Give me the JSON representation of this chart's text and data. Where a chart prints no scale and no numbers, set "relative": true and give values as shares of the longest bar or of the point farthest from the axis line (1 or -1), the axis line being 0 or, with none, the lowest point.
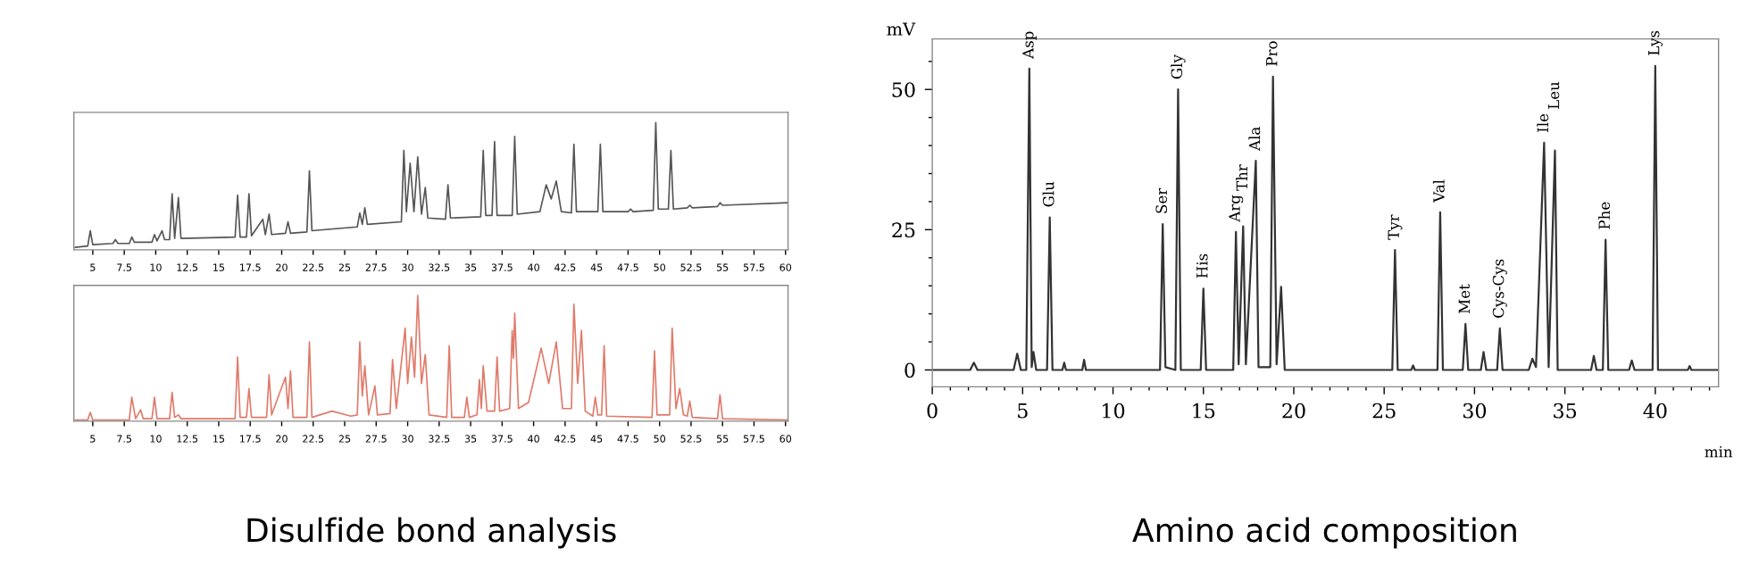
{
  "chart_data": [
    {
      "type": "line",
      "relative": true,
      "title": "Disulfide bond analysis",
      "xlim": [
        3.5,
        60.2
      ],
      "xticks": [
        5,
        7.5,
        10,
        12.5,
        15,
        17.5,
        20,
        22.5,
        25,
        27.5,
        30,
        32.5,
        35,
        37.5,
        40,
        42.5,
        45,
        47.5,
        50,
        52.5,
        55,
        57.5,
        60
      ],
      "tick_labels": "x",
      "series": [
        {
          "color": "#555555",
          "x": [
            3.6,
            4.6,
            4.8,
            5.0,
            6.6,
            6.8,
            7.0,
            7.9,
            8.1,
            8.3,
            9.7,
            9.9,
            10.1,
            10.5,
            10.7,
            11.1,
            11.3,
            11.5,
            11.8,
            12.0,
            16.3,
            16.5,
            16.7,
            17.2,
            17.4,
            17.6,
            18.5,
            18.7,
            19.0,
            19.2,
            20.3,
            20.5,
            20.7,
            22.0,
            22.2,
            22.4,
            26.0,
            26.2,
            26.4,
            26.6,
            26.8,
            29.5,
            29.7,
            29.9,
            30.2,
            30.5,
            30.8,
            31.1,
            31.4,
            31.6,
            33.0,
            33.2,
            33.4,
            35.8,
            36.0,
            36.2,
            36.7,
            36.9,
            37.1,
            38.3,
            38.5,
            38.7,
            40.5,
            41.0,
            41.4,
            41.8,
            42.2,
            43.0,
            43.2,
            43.4,
            45.1,
            45.3,
            45.5,
            47.5,
            47.7,
            47.9,
            49.5,
            49.7,
            49.9,
            50.7,
            50.9,
            51.1,
            52.2,
            52.4,
            52.6,
            54.6,
            54.8,
            55.0,
            60.2
          ],
          "values": [
            0.02,
            0.03,
            0.15,
            0.04,
            0.05,
            0.08,
            0.05,
            0.05,
            0.1,
            0.06,
            0.06,
            0.12,
            0.07,
            0.15,
            0.08,
            0.08,
            0.44,
            0.09,
            0.41,
            0.09,
            0.1,
            0.43,
            0.1,
            0.1,
            0.44,
            0.11,
            0.24,
            0.12,
            0.28,
            0.12,
            0.13,
            0.22,
            0.13,
            0.14,
            0.62,
            0.15,
            0.18,
            0.29,
            0.2,
            0.33,
            0.2,
            0.22,
            0.78,
            0.3,
            0.68,
            0.3,
            0.73,
            0.28,
            0.49,
            0.25,
            0.24,
            0.51,
            0.25,
            0.26,
            0.78,
            0.27,
            0.27,
            0.85,
            0.27,
            0.27,
            0.89,
            0.28,
            0.3,
            0.51,
            0.4,
            0.54,
            0.3,
            0.29,
            0.83,
            0.3,
            0.3,
            0.83,
            0.3,
            0.3,
            0.32,
            0.3,
            0.31,
            1.0,
            0.32,
            0.32,
            0.78,
            0.32,
            0.33,
            0.35,
            0.33,
            0.34,
            0.37,
            0.35,
            0.37
          ]
        }
      ]
    },
    {
      "type": "line",
      "relative": true,
      "xlim": [
        3.5,
        60.2
      ],
      "xticks": [
        5,
        7.5,
        10,
        12.5,
        15,
        17.5,
        20,
        22.5,
        25,
        27.5,
        30,
        32.5,
        35,
        37.5,
        40,
        42.5,
        45,
        47.5,
        50,
        52.5,
        55,
        57.5,
        60
      ],
      "tick_labels": "x",
      "series": [
        {
          "color": "#e07a6a",
          "x": [
            3.6,
            4.6,
            4.8,
            5.0,
            7.9,
            8.1,
            8.4,
            8.8,
            9.0,
            9.7,
            9.9,
            10.1,
            11.1,
            11.3,
            11.5,
            11.8,
            12.0,
            16.3,
            16.5,
            16.7,
            17.2,
            17.4,
            17.6,
            18.8,
            19.0,
            19.2,
            20.3,
            20.5,
            20.7,
            20.9,
            22.0,
            22.2,
            22.4,
            24,
            25.5,
            26.0,
            26.2,
            26.4,
            26.6,
            26.9,
            27.4,
            27.6,
            28.6,
            28.8,
            29.1,
            29.8,
            30.0,
            30.3,
            30.55,
            30.8,
            31.1,
            31.4,
            31.7,
            33.1,
            33.3,
            33.5,
            34.5,
            34.7,
            34.9,
            35.5,
            35.7,
            35.85,
            36.0,
            36.3,
            36.9,
            37.1,
            37.3,
            38.1,
            38.3,
            38.4,
            38.5,
            38.8,
            39.6,
            40.6,
            41.2,
            41.8,
            42.3,
            43.0,
            43.2,
            43.5,
            43.8,
            44.1,
            44.7,
            44.9,
            45.1,
            45.4,
            45.6,
            45.8,
            49.4,
            49.6,
            49.8,
            50.8,
            51.0,
            51.3,
            51.6,
            51.9,
            52.2,
            52.4,
            52.6,
            54.6,
            54.8,
            55.0,
            60.2
          ],
          "values": [
            0.01,
            0.01,
            0.07,
            0.01,
            0.01,
            0.19,
            0.02,
            0.09,
            0.02,
            0.02,
            0.19,
            0.02,
            0.02,
            0.23,
            0.03,
            0.05,
            0.02,
            0.02,
            0.51,
            0.03,
            0.03,
            0.26,
            0.03,
            0.03,
            0.37,
            0.05,
            0.35,
            0.1,
            0.4,
            0.03,
            0.03,
            0.63,
            0.03,
            0.08,
            0.04,
            0.05,
            0.63,
            0.2,
            0.44,
            0.05,
            0.28,
            0.05,
            0.06,
            0.49,
            0.1,
            0.74,
            0.3,
            0.67,
            0.35,
            1.0,
            0.3,
            0.53,
            0.05,
            0.03,
            0.6,
            0.03,
            0.03,
            0.19,
            0.03,
            0.05,
            0.33,
            0.1,
            0.44,
            0.08,
            0.08,
            0.51,
            0.08,
            0.1,
            0.72,
            0.5,
            0.86,
            0.1,
            0.15,
            0.58,
            0.3,
            0.63,
            0.1,
            0.1,
            0.93,
            0.3,
            0.72,
            0.08,
            0.04,
            0.19,
            0.05,
            0.05,
            0.6,
            0.04,
            0.03,
            0.56,
            0.05,
            0.05,
            0.74,
            0.1,
            0.26,
            0.05,
            0.04,
            0.16,
            0.03,
            0.02,
            0.21,
            0.02,
            0.01
          ]
        }
      ]
    },
    {
      "type": "line",
      "title": "Amino acid composition",
      "xlabel": "min",
      "ylabel": "mV",
      "xlim": [
        0,
        43.5
      ],
      "xticks": [
        0,
        5,
        10,
        15,
        20,
        25,
        30,
        35,
        40
      ],
      "ylim": [
        -3,
        59
      ],
      "yticks": [
        0,
        25,
        50
      ],
      "series": [
        {
          "color": "#333333",
          "x": [
            0,
            2.1,
            2.3,
            2.5,
            4.5,
            4.7,
            4.9,
            5.2,
            5.37,
            5.5,
            5.6,
            5.75,
            6.35,
            6.5,
            6.65,
            7.2,
            7.3,
            7.4,
            8.3,
            8.4,
            8.5,
            12.6,
            12.75,
            12.9,
            13.45,
            13.6,
            13.75,
            14.85,
            15.0,
            15.15,
            16.65,
            16.8,
            16.95,
            17.2,
            17.35,
            17.9,
            18.05,
            18.7,
            18.85,
            19.05,
            19.3,
            19.5,
            25.45,
            25.6,
            25.75,
            26.5,
            26.6,
            26.7,
            27.95,
            28.1,
            28.25,
            29.35,
            29.5,
            29.65,
            30.35,
            30.5,
            30.65,
            31.25,
            31.4,
            31.55,
            33.0,
            33.2,
            33.4,
            33.85,
            34.1,
            34.45,
            34.6,
            36.45,
            36.6,
            36.75,
            37.1,
            37.25,
            37.4,
            38.55,
            38.7,
            38.85,
            39.85,
            40.0,
            40.15,
            41.8,
            41.9,
            42.0,
            43.5
          ],
          "values": [
            0,
            0,
            1.3,
            0,
            0,
            2.9,
            0,
            0,
            53.7,
            0.5,
            3.2,
            0,
            0,
            27.2,
            0,
            0,
            1.3,
            0,
            0,
            1.8,
            0,
            0,
            26,
            0.5,
            0,
            50,
            0,
            0,
            14.5,
            0,
            0,
            24.6,
            1,
            25.6,
            1,
            37.3,
            0.5,
            0.5,
            52.3,
            1,
            14.8,
            0,
            0,
            21.4,
            0,
            0,
            0.8,
            0,
            0,
            28.1,
            0,
            0,
            8.2,
            0,
            0,
            3.2,
            0,
            0,
            7.4,
            0,
            0,
            2.0,
            0.5,
            40.5,
            0.5,
            39.1,
            0,
            0,
            2.5,
            0,
            0,
            23.2,
            0,
            0,
            1.7,
            0,
            0,
            54.2,
            0,
            0,
            0.7,
            0,
            0
          ]
        }
      ],
      "annotations": [
        {
          "text": "Asp",
          "x": 5.37,
          "y": 53.7
        },
        {
          "text": "Glu",
          "x": 6.5,
          "y": 27.2
        },
        {
          "text": "Ser",
          "x": 12.75,
          "y": 26
        },
        {
          "text": "Gly",
          "x": 13.6,
          "y": 50
        },
        {
          "text": "His",
          "x": 15.0,
          "y": 14.5
        },
        {
          "text": "Arg",
          "x": 16.8,
          "y": 24.6
        },
        {
          "text": "Thr",
          "x": 17.2,
          "y": 25.6
        },
        {
          "text": "Ala",
          "x": 17.9,
          "y": 37.3
        },
        {
          "text": "Pro",
          "x": 18.85,
          "y": 52.3
        },
        {
          "text": "Tyr",
          "x": 25.6,
          "y": 21.4
        },
        {
          "text": "Val",
          "x": 28.1,
          "y": 28.1
        },
        {
          "text": "Met",
          "x": 29.5,
          "y": 8.2
        },
        {
          "text": "Cys-Cys",
          "x": 31.4,
          "y": 7.4
        },
        {
          "text": "Ile",
          "x": 33.85,
          "y": 40.5
        },
        {
          "text": "Leu",
          "x": 34.45,
          "y": 39.1
        },
        {
          "text": "Phe",
          "x": 37.25,
          "y": 23.2
        },
        {
          "text": "Lys",
          "x": 40.0,
          "y": 54.2
        }
      ]
    }
  ]
}
